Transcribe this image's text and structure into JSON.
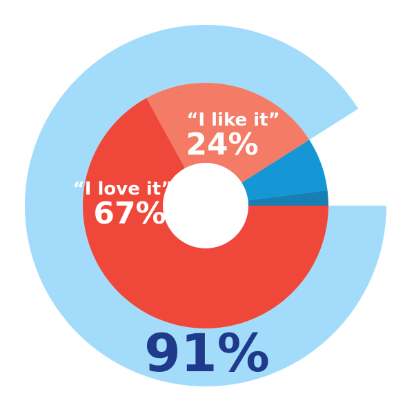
{
  "chart_data": {
    "type": "pie",
    "title": "",
    "total_label": "91%",
    "total_value": 91,
    "outer_ring": {
      "value": 91,
      "color": "#a3dcfa"
    },
    "slices": [
      {
        "label": "",
        "value": 67,
        "percent_text": "67%",
        "quote_text": "“I love it”",
        "color": "#ef473a"
      },
      {
        "label": "",
        "value": 24,
        "percent_text": "24%",
        "quote_text": "“I like it”",
        "color": "#f47b66"
      },
      {
        "label": "",
        "value": 7,
        "percent_text": "",
        "quote_text": "",
        "color": "#1597d5"
      },
      {
        "label": "",
        "value": 2,
        "percent_text": "",
        "quote_text": "",
        "color": "#187fb4"
      }
    ]
  }
}
